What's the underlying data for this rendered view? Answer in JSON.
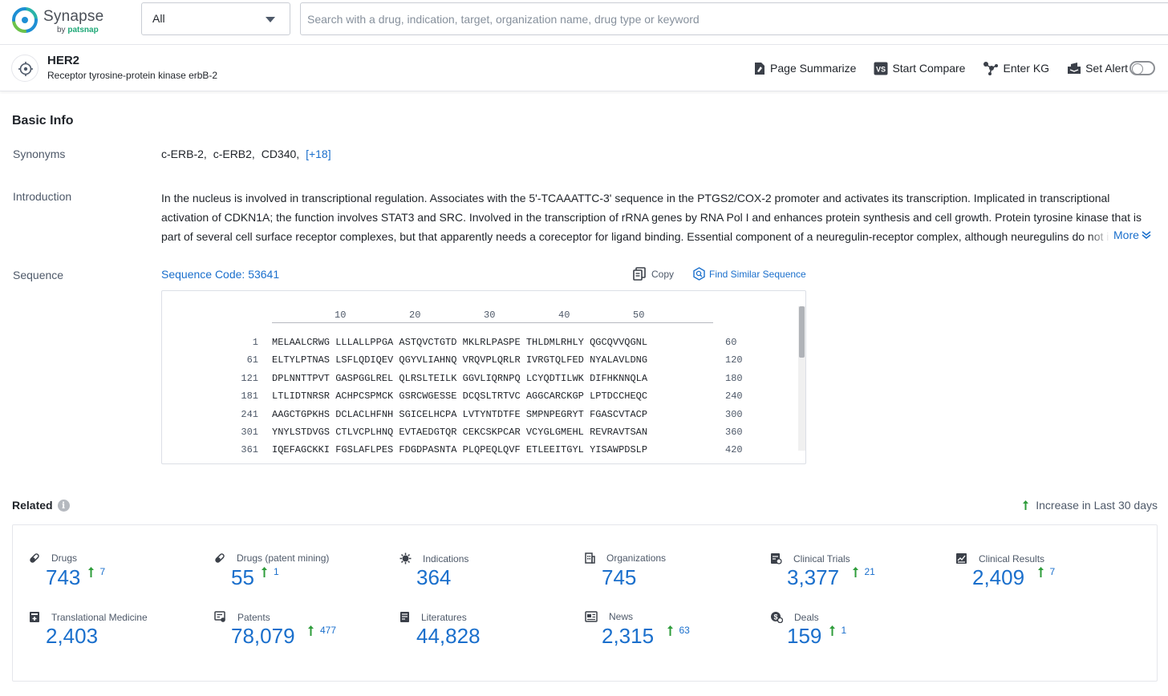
{
  "app": {
    "name": "Synapse",
    "by": "by",
    "brand": "patsnap"
  },
  "search": {
    "scope": "All",
    "placeholder": "Search with a drug, indication, target, organization name, drug type or keyword",
    "value": ""
  },
  "entity": {
    "title": "HER2",
    "subtitle": "Receptor tyrosine-protein kinase erbB-2"
  },
  "actions": {
    "summarize": "Page Summarize",
    "compare": "Start Compare",
    "kg": "Enter KG",
    "alert": "Set Alert"
  },
  "basic_info": {
    "title": "Basic Info",
    "synonyms_label": "Synonyms",
    "synonyms": [
      "c-ERB-2,",
      "c-ERB2,",
      "CD340,"
    ],
    "synonyms_more": "[+18]",
    "intro_label": "Introduction",
    "intro": "In the nucleus is involved in transcriptional regulation. Associates with the 5'-TCAAATTC-3' sequence in the PTGS2/COX-2 promoter and activates its transcription. Implicated in transcriptional activation of CDKN1A; the function involves STAT3 and SRC. Involved in the transcription of rRNA genes by RNA Pol I and enhances protein synthesis and cell growth. Protein tyrosine kinase that is part of several cell surface receptor complexes, but that apparently needs a coreceptor for ligand binding. Essential component of a neuregulin-receptor complex, although neuregulins do not interact with it alone.",
    "intro_more": "More",
    "sequence_label": "Sequence",
    "sequence_code": "Sequence Code: 53641",
    "copy": "Copy",
    "find_similar": "Find Similar Sequence",
    "ruler": [
      "10",
      "20",
      "30",
      "40",
      "50"
    ],
    "sequence_rows": [
      {
        "start": "1",
        "seq": "MELAALCRWG LLLALLPPGA ASTQVCTGTD MKLRLPASPE THLDMLRHLY QGCQVVQGNL",
        "end": "60"
      },
      {
        "start": "61",
        "seq": "ELTYLPTNAS LSFLQDIQEV QGYVLIAHNQ VRQVPLQRLR IVRGTQLFED NYALAVLDNG",
        "end": "120"
      },
      {
        "start": "121",
        "seq": "DPLNNTTPVT GASPGGLREL QLRSLTEILK GGVLIQRNPQ LCYQDTILWK DIFHKNNQLA",
        "end": "180"
      },
      {
        "start": "181",
        "seq": "LTLIDTNRSR ACHPCSPMCK GSRCWGESSE DCQSLTRTVC AGGCARCKGP LPTDCCHEQC",
        "end": "240"
      },
      {
        "start": "241",
        "seq": "AAGCTGPKHS DCLACLHFNH SGICELHCPA LVTYNTDTFE SMPNPEGRYT FGASCVTACP",
        "end": "300"
      },
      {
        "start": "301",
        "seq": "YNYLSTDVGS CTLVCPLHNQ EVTAEDGTQR CEKCSKPCAR VCYGLGMEHL REVRAVTSAN",
        "end": "360"
      },
      {
        "start": "361",
        "seq": "IQEFAGCKKI FGSLAFLPES FDGDPASNTA PLQPEQLQVF ETLEEITGYL YISAWPDSLP",
        "end": "420"
      }
    ]
  },
  "related": {
    "title": "Related",
    "increase_legend": "Increase in Last 30 days",
    "stats": [
      {
        "label": "Drugs",
        "value": "743",
        "increase": "7",
        "icon": "pill-icon"
      },
      {
        "label": "Drugs (patent mining)",
        "value": "55",
        "increase": "1",
        "icon": "pill-icon"
      },
      {
        "label": "Indications",
        "value": "364",
        "increase": "",
        "icon": "virus-icon"
      },
      {
        "label": "Organizations",
        "value": "745",
        "increase": "",
        "icon": "building-icon"
      },
      {
        "label": "Clinical Trials",
        "value": "3,377",
        "increase": "21",
        "icon": "clipboard-icon"
      },
      {
        "label": "Clinical Results",
        "value": "2,409",
        "increase": "7",
        "icon": "chart-doc-icon"
      },
      {
        "label": "Translational Medicine",
        "value": "2,403",
        "increase": "",
        "icon": "medical-doc-icon"
      },
      {
        "label": "Patents",
        "value": "78,079",
        "increase": "477",
        "icon": "patent-icon"
      },
      {
        "label": "Literatures",
        "value": "44,828",
        "increase": "",
        "icon": "book-icon"
      },
      {
        "label": "News",
        "value": "2,315",
        "increase": "63",
        "icon": "newspaper-icon"
      },
      {
        "label": "Deals",
        "value": "159",
        "increase": "1",
        "icon": "deal-icon"
      }
    ]
  },
  "colors": {
    "accent": "#1a6fcc",
    "increase": "#2e9c3a",
    "brand": "#1ea877"
  }
}
